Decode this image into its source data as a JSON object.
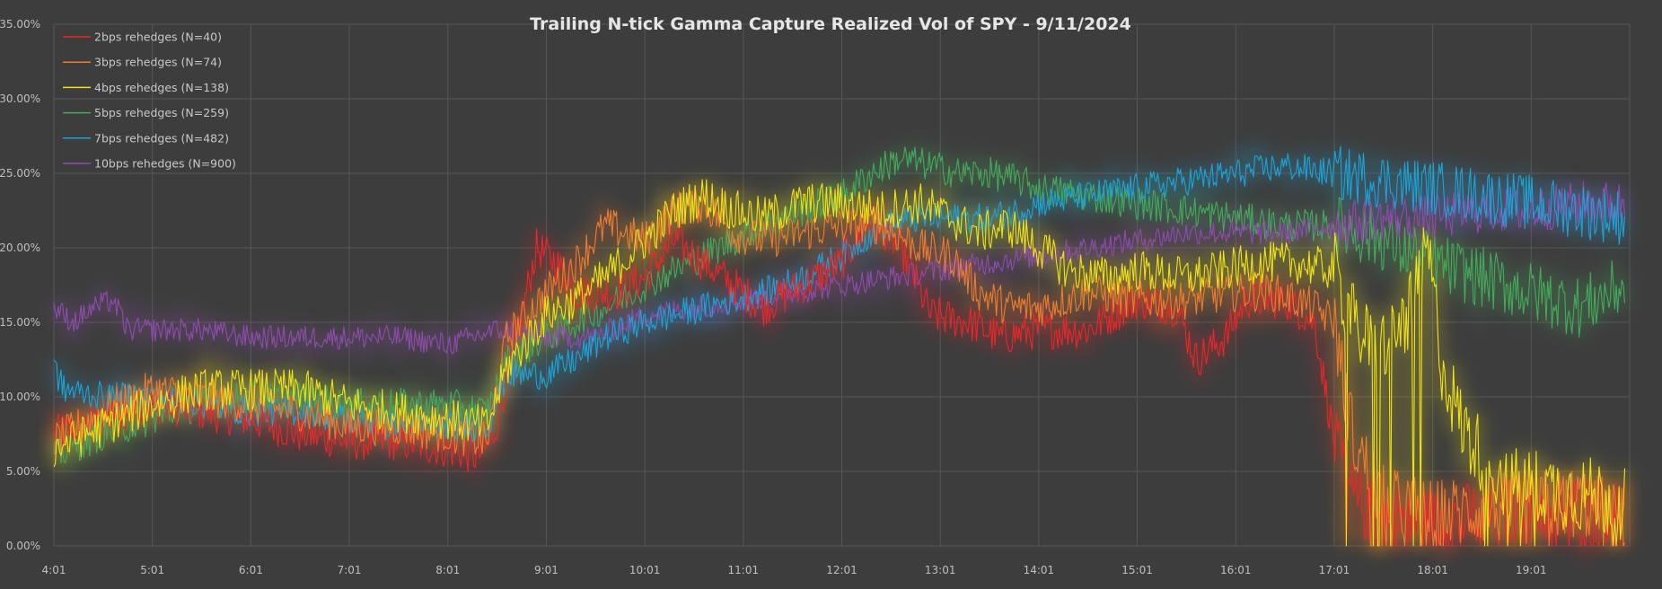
{
  "chart_data": {
    "type": "line",
    "title": "Trailing N-tick Gamma Capture Realized Vol of SPY - 9/11/2024",
    "xlabel": "",
    "ylabel": "",
    "x_ticks": [
      "4:01",
      "5:01",
      "6:01",
      "7:01",
      "8:01",
      "9:01",
      "10:01",
      "11:01",
      "12:01",
      "13:01",
      "14:01",
      "15:01",
      "16:01",
      "17:01",
      "18:01",
      "19:01"
    ],
    "x_range": [
      4,
      20
    ],
    "y_ticks": [
      "0.00%",
      "5.00%",
      "10.00%",
      "15.00%",
      "20.00%",
      "25.00%",
      "30.00%",
      "35.00%"
    ],
    "ylim": [
      0,
      35
    ],
    "grid": true,
    "legend_position": "top-left",
    "series": [
      {
        "name": "2bps rehedges (N=40)",
        "color": "#e8282a",
        "noise": 1.3,
        "points": [
          [
            4.0,
            7.5
          ],
          [
            4.5,
            8.5
          ],
          [
            5.0,
            9.5
          ],
          [
            5.5,
            9.0
          ],
          [
            6.0,
            8.5
          ],
          [
            6.5,
            7.5
          ],
          [
            7.0,
            7.0
          ],
          [
            7.5,
            7.0
          ],
          [
            8.0,
            6.5
          ],
          [
            8.3,
            6.0
          ],
          [
            8.45,
            7.0
          ],
          [
            8.7,
            14.0
          ],
          [
            8.9,
            20.0
          ],
          [
            9.1,
            19.0
          ],
          [
            9.3,
            17.0
          ],
          [
            9.7,
            17.0
          ],
          [
            10.0,
            18.0
          ],
          [
            10.3,
            20.5
          ],
          [
            10.6,
            19.0
          ],
          [
            10.9,
            17.5
          ],
          [
            11.2,
            16.0
          ],
          [
            11.6,
            17.5
          ],
          [
            12.0,
            19.0
          ],
          [
            12.3,
            22.0
          ],
          [
            12.6,
            20.0
          ],
          [
            12.9,
            15.5
          ],
          [
            13.3,
            15.0
          ],
          [
            13.6,
            14.0
          ],
          [
            14.0,
            14.5
          ],
          [
            14.5,
            14.5
          ],
          [
            15.0,
            16.5
          ],
          [
            15.4,
            16.0
          ],
          [
            15.6,
            12.5
          ],
          [
            15.9,
            14.0
          ],
          [
            16.1,
            16.5
          ],
          [
            16.5,
            16.5
          ],
          [
            16.8,
            15.0
          ],
          [
            17.0,
            7.0
          ],
          [
            17.2,
            3.0
          ],
          [
            17.5,
            2.0
          ],
          [
            18.0,
            1.5
          ],
          [
            18.5,
            2.0
          ],
          [
            19.0,
            2.5
          ],
          [
            19.5,
            2.5
          ],
          [
            19.95,
            2.5
          ]
        ]
      },
      {
        "name": "3bps rehedges (N=74)",
        "color": "#ed7d31",
        "noise": 1.3,
        "points": [
          [
            4.0,
            7.0
          ],
          [
            4.5,
            9.0
          ],
          [
            5.0,
            10.5
          ],
          [
            5.5,
            10.0
          ],
          [
            6.0,
            9.5
          ],
          [
            6.5,
            9.0
          ],
          [
            7.0,
            8.0
          ],
          [
            7.5,
            8.0
          ],
          [
            8.0,
            7.5
          ],
          [
            8.4,
            7.0
          ],
          [
            8.6,
            14.0
          ],
          [
            9.0,
            17.0
          ],
          [
            9.3,
            19.0
          ],
          [
            9.6,
            21.5
          ],
          [
            10.0,
            20.5
          ],
          [
            10.3,
            22.5
          ],
          [
            10.6,
            23.0
          ],
          [
            10.9,
            21.0
          ],
          [
            11.2,
            20.5
          ],
          [
            11.6,
            21.0
          ],
          [
            12.0,
            21.5
          ],
          [
            12.4,
            21.5
          ],
          [
            12.8,
            20.0
          ],
          [
            13.1,
            19.5
          ],
          [
            13.4,
            17.0
          ],
          [
            13.7,
            16.0
          ],
          [
            14.0,
            16.0
          ],
          [
            14.5,
            17.0
          ],
          [
            15.0,
            16.5
          ],
          [
            15.5,
            16.5
          ],
          [
            16.0,
            17.0
          ],
          [
            16.4,
            17.0
          ],
          [
            16.8,
            16.0
          ],
          [
            17.0,
            15.0
          ],
          [
            17.2,
            7.0
          ],
          [
            17.5,
            3.0
          ],
          [
            18.0,
            2.0
          ],
          [
            18.5,
            2.5
          ],
          [
            19.0,
            2.5
          ],
          [
            19.5,
            3.0
          ],
          [
            19.95,
            1.5
          ]
        ]
      },
      {
        "name": "4bps rehedges (N=138)",
        "color": "#f0e21a",
        "noise": 1.4,
        "points": [
          [
            4.0,
            6.5
          ],
          [
            4.5,
            8.0
          ],
          [
            5.0,
            9.5
          ],
          [
            5.5,
            10.5
          ],
          [
            6.0,
            10.5
          ],
          [
            6.5,
            10.5
          ],
          [
            7.0,
            9.5
          ],
          [
            7.5,
            9.0
          ],
          [
            8.0,
            8.5
          ],
          [
            8.4,
            8.0
          ],
          [
            8.6,
            12.0
          ],
          [
            9.0,
            15.5
          ],
          [
            9.3,
            16.5
          ],
          [
            9.6,
            18.0
          ],
          [
            10.0,
            20.5
          ],
          [
            10.3,
            22.5
          ],
          [
            10.6,
            23.5
          ],
          [
            10.9,
            22.5
          ],
          [
            11.2,
            22.0
          ],
          [
            11.6,
            23.0
          ],
          [
            12.0,
            23.0
          ],
          [
            12.4,
            22.5
          ],
          [
            12.8,
            23.0
          ],
          [
            13.1,
            22.0
          ],
          [
            13.4,
            21.0
          ],
          [
            13.7,
            21.5
          ],
          [
            14.0,
            20.0
          ],
          [
            14.3,
            18.5
          ],
          [
            14.7,
            18.0
          ],
          [
            15.0,
            18.5
          ],
          [
            15.5,
            18.0
          ],
          [
            15.9,
            18.5
          ],
          [
            16.2,
            19.0
          ],
          [
            16.6,
            19.0
          ],
          [
            17.0,
            18.5
          ],
          [
            17.2,
            15.0
          ],
          [
            17.4,
            13.0
          ],
          [
            17.6,
            14.0
          ],
          [
            17.8,
            16.0
          ],
          [
            17.95,
            20.0
          ],
          [
            18.1,
            12.0
          ],
          [
            18.3,
            8.0
          ],
          [
            18.5,
            6.0
          ],
          [
            18.8,
            4.0
          ],
          [
            19.0,
            4.0
          ],
          [
            19.5,
            3.5
          ],
          [
            19.95,
            3.0
          ]
        ]
      },
      {
        "name": "5bps rehedges (N=259)",
        "color": "#46a95c",
        "noise": 1.1,
        "points": [
          [
            4.0,
            6.0
          ],
          [
            4.5,
            7.5
          ],
          [
            5.0,
            8.5
          ],
          [
            5.5,
            9.5
          ],
          [
            6.0,
            10.0
          ],
          [
            6.5,
            10.0
          ],
          [
            7.0,
            9.5
          ],
          [
            7.5,
            9.5
          ],
          [
            8.0,
            9.5
          ],
          [
            8.4,
            9.0
          ],
          [
            8.6,
            12.5
          ],
          [
            9.0,
            14.0
          ],
          [
            9.3,
            15.0
          ],
          [
            9.6,
            16.0
          ],
          [
            10.0,
            17.5
          ],
          [
            10.3,
            18.5
          ],
          [
            10.6,
            19.5
          ],
          [
            10.9,
            20.5
          ],
          [
            11.2,
            21.5
          ],
          [
            11.6,
            22.5
          ],
          [
            12.0,
            23.5
          ],
          [
            12.3,
            25.0
          ],
          [
            12.6,
            26.0
          ],
          [
            12.9,
            25.5
          ],
          [
            13.2,
            25.0
          ],
          [
            13.5,
            25.0
          ],
          [
            13.8,
            24.5
          ],
          [
            14.0,
            24.0
          ],
          [
            14.5,
            23.5
          ],
          [
            15.0,
            23.0
          ],
          [
            15.5,
            22.5
          ],
          [
            16.0,
            22.0
          ],
          [
            16.5,
            21.5
          ],
          [
            17.0,
            21.5
          ],
          [
            17.5,
            20.5
          ],
          [
            18.0,
            19.0
          ],
          [
            18.5,
            18.0
          ],
          [
            19.0,
            17.0
          ],
          [
            19.5,
            16.0
          ],
          [
            19.95,
            17.5
          ]
        ]
      },
      {
        "name": "7bps rehedges (N=482)",
        "color": "#1fa3d6",
        "noise": 1.0,
        "points": [
          [
            4.0,
            12.0
          ],
          [
            4.1,
            10.5
          ],
          [
            4.5,
            10.0
          ],
          [
            5.0,
            10.0
          ],
          [
            5.5,
            9.5
          ],
          [
            6.0,
            9.0
          ],
          [
            6.5,
            9.0
          ],
          [
            7.0,
            8.5
          ],
          [
            7.5,
            8.0
          ],
          [
            8.0,
            8.0
          ],
          [
            8.4,
            8.0
          ],
          [
            8.6,
            11.5
          ],
          [
            9.0,
            11.5
          ],
          [
            9.3,
            12.5
          ],
          [
            9.6,
            14.0
          ],
          [
            10.0,
            15.0
          ],
          [
            10.3,
            15.5
          ],
          [
            10.6,
            16.0
          ],
          [
            10.9,
            16.5
          ],
          [
            11.2,
            17.0
          ],
          [
            11.6,
            18.0
          ],
          [
            12.0,
            19.5
          ],
          [
            12.4,
            21.5
          ],
          [
            12.8,
            22.0
          ],
          [
            13.1,
            22.0
          ],
          [
            13.5,
            22.0
          ],
          [
            13.8,
            22.5
          ],
          [
            14.0,
            23.0
          ],
          [
            14.5,
            23.5
          ],
          [
            15.0,
            24.0
          ],
          [
            15.5,
            24.5
          ],
          [
            16.0,
            25.0
          ],
          [
            16.5,
            25.5
          ],
          [
            17.0,
            25.0
          ],
          [
            17.5,
            24.5
          ],
          [
            18.0,
            24.0
          ],
          [
            18.5,
            23.5
          ],
          [
            19.0,
            23.0
          ],
          [
            19.5,
            22.5
          ],
          [
            19.95,
            22.0
          ]
        ]
      },
      {
        "name": "10bps rehedges (N=900)",
        "color": "#8e4dab",
        "noise": 0.8,
        "points": [
          [
            4.0,
            16.0
          ],
          [
            4.2,
            15.0
          ],
          [
            4.4,
            16.0
          ],
          [
            4.6,
            16.5
          ],
          [
            4.75,
            14.5
          ],
          [
            5.0,
            14.5
          ],
          [
            5.5,
            14.5
          ],
          [
            6.0,
            14.0
          ],
          [
            6.5,
            14.0
          ],
          [
            7.0,
            14.0
          ],
          [
            7.5,
            14.0
          ],
          [
            8.0,
            13.5
          ],
          [
            8.5,
            14.5
          ],
          [
            9.0,
            14.0
          ],
          [
            9.5,
            14.0
          ],
          [
            10.0,
            15.5
          ],
          [
            10.5,
            16.0
          ],
          [
            11.0,
            16.5
          ],
          [
            11.5,
            17.0
          ],
          [
            12.0,
            17.5
          ],
          [
            12.5,
            18.0
          ],
          [
            13.0,
            18.5
          ],
          [
            13.5,
            19.0
          ],
          [
            14.0,
            19.5
          ],
          [
            14.5,
            20.0
          ],
          [
            15.0,
            20.5
          ],
          [
            15.5,
            21.0
          ],
          [
            16.0,
            21.0
          ],
          [
            16.5,
            21.0
          ],
          [
            17.0,
            21.5
          ],
          [
            17.5,
            22.0
          ],
          [
            18.0,
            22.0
          ],
          [
            18.5,
            22.5
          ],
          [
            19.0,
            22.5
          ],
          [
            19.5,
            23.0
          ],
          [
            19.95,
            23.0
          ]
        ]
      }
    ]
  }
}
